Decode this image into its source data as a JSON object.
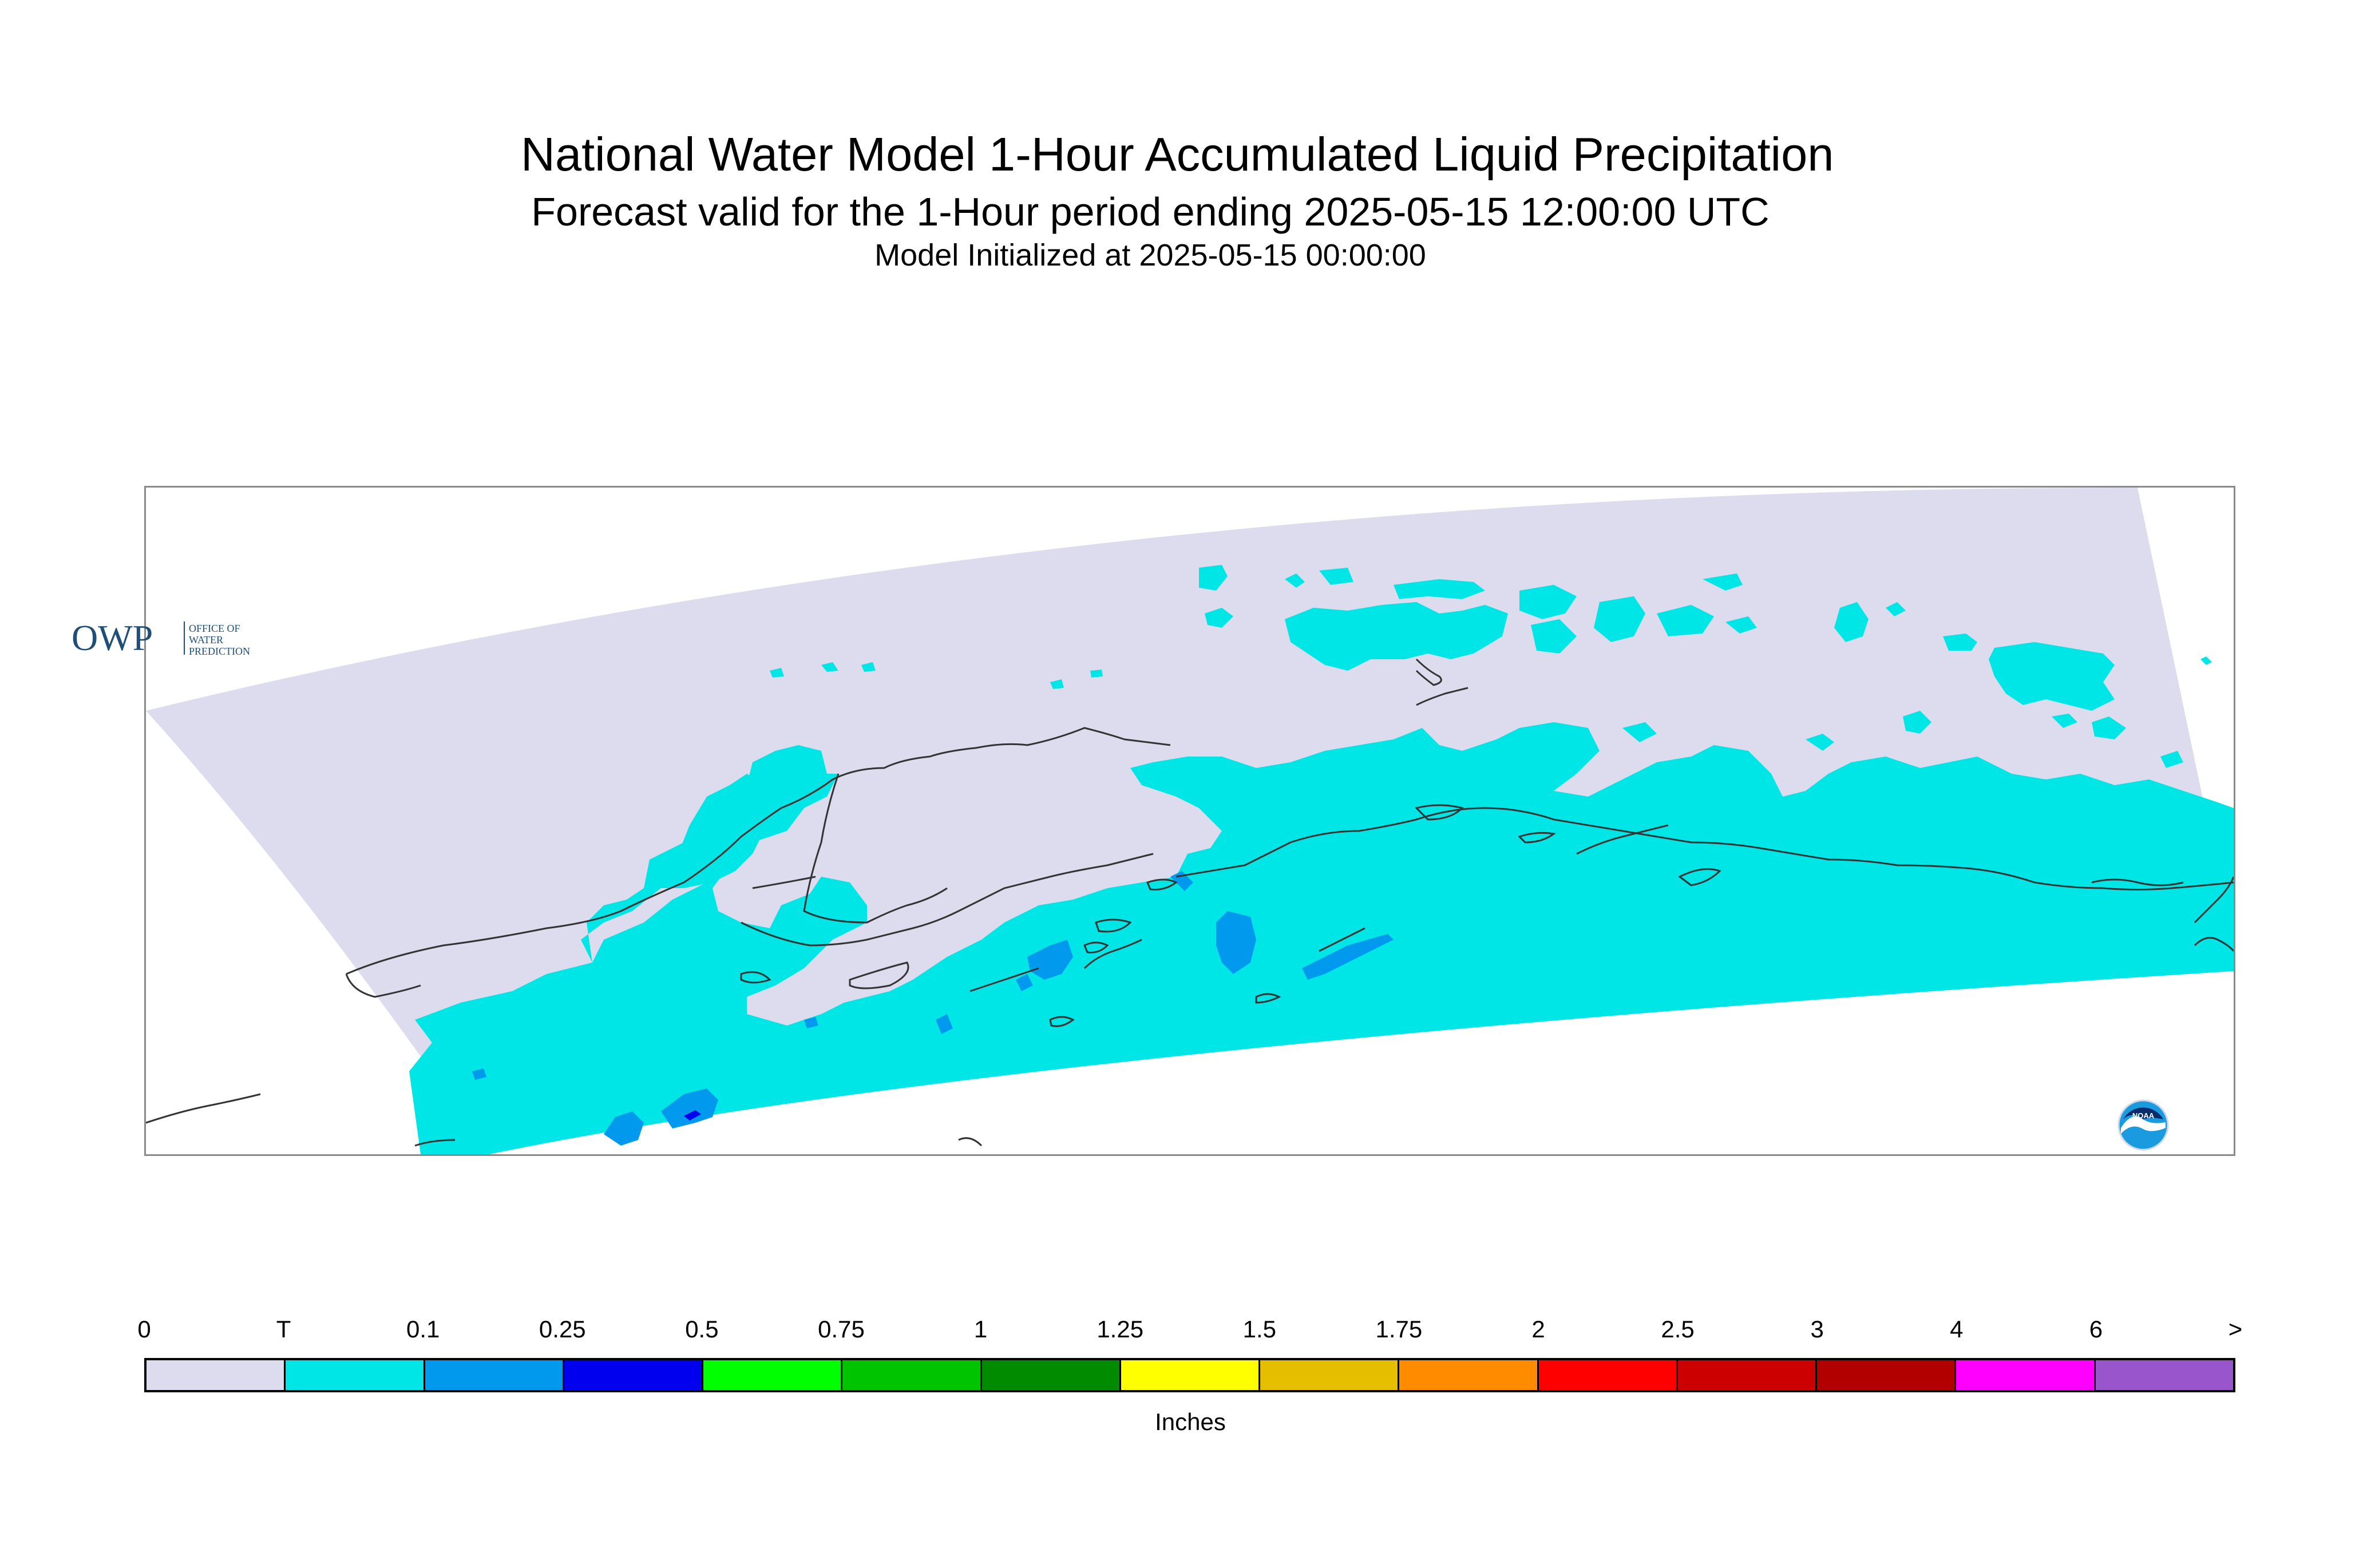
{
  "header": {
    "title": "National Water Model 1-Hour Accumulated Liquid Precipitation",
    "subtitle": "Forecast valid for the 1-Hour period ending 2025-05-15 12:00:00 UTC",
    "init_line": "Model Initialized at 2025-05-15 00:00:00"
  },
  "map": {
    "region": "southern-alaska",
    "domain_color": "#dcdcee",
    "precip_color": "#00e5e5",
    "precip_moderate_color": "#0099ee",
    "precip_heavy_color": "#0000ee",
    "coastline_color": "#333333"
  },
  "logos": {
    "owp_text": "OWP",
    "owp_lines": [
      "OFFICE OF",
      "WATER",
      "PREDICTION"
    ],
    "noaa_text": "NOAA"
  },
  "colorbar": {
    "labels": [
      "0",
      "T",
      "0.1",
      "0.25",
      "0.5",
      "0.75",
      "1",
      "1.25",
      "1.5",
      "1.75",
      "2",
      "2.5",
      "3",
      "4",
      "6",
      ">"
    ],
    "colors": [
      "#dcdcee",
      "#00e5e5",
      "#0099ee",
      "#0000ee",
      "#00ff00",
      "#00c400",
      "#008b00",
      "#ffff00",
      "#e5be00",
      "#ff8c00",
      "#ff0000",
      "#cc0000",
      "#b20000",
      "#ff00ff",
      "#9955cc"
    ],
    "units": "Inches"
  }
}
